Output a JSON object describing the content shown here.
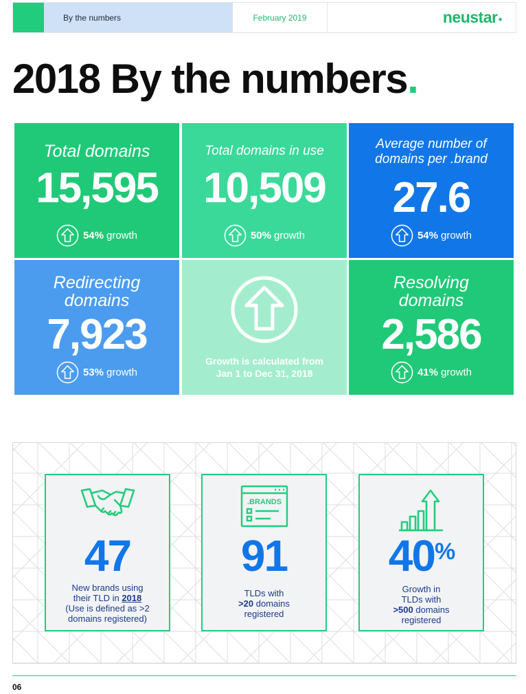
{
  "header": {
    "section": "By the numbers",
    "date": "February 2019",
    "logo": "neustar"
  },
  "title": {
    "text": "2018 By the numbers",
    "dot": "."
  },
  "tiles": [
    {
      "label": "Total domains",
      "value": "15,595",
      "growth_pct": "54%",
      "growth_word": "growth",
      "color": "#20c978"
    },
    {
      "label": "Total domains in use",
      "value": "10,509",
      "growth_pct": "50%",
      "growth_word": "growth",
      "color": "#3ad99a"
    },
    {
      "label_line1": "Average number of",
      "label_line2": "domains per .brand",
      "value": "27.6",
      "growth_pct": "54%",
      "growth_word": "growth",
      "color": "#1177e8"
    },
    {
      "label_line1": "Redirecting",
      "label_line2": "domains",
      "value": "7,923",
      "growth_pct": "53%",
      "growth_word": "growth",
      "color": "#4b9cef"
    },
    {
      "note_line1": "Growth is calculated from",
      "note_line2": "Jan 1 to Dec 31, 2018",
      "color": "#a3edce"
    },
    {
      "label_line1": "Resolving",
      "label_line2": "domains",
      "value": "2,586",
      "growth_pct": "41%",
      "growth_word": "growth",
      "color": "#20c978"
    }
  ],
  "cards": [
    {
      "icon": "handshake-icon",
      "value": "47",
      "line1": "New brands using",
      "line2a": "their TLD in ",
      "line2b": "2018",
      "line3": "(Use is defined as >2",
      "line4": "domains registered)"
    },
    {
      "icon": "brands-window-icon",
      "icon_text": ".BRANDS",
      "value": "91",
      "line1": "TLDs with",
      "line2": ">20",
      "line2b": " domains",
      "line3": "registered"
    },
    {
      "icon": "growth-bars-icon",
      "value": "40",
      "suffix": "%",
      "line1": "Growth in",
      "line2": "TLDs with",
      "line3": ">500",
      "line3b": " domains",
      "line4": "registered"
    }
  ],
  "footer": {
    "page": "06"
  },
  "colors": {
    "green": "#22cc7d",
    "blue": "#1177e8",
    "light_blue": "#cfe1f7",
    "mint": "#a3edce"
  }
}
